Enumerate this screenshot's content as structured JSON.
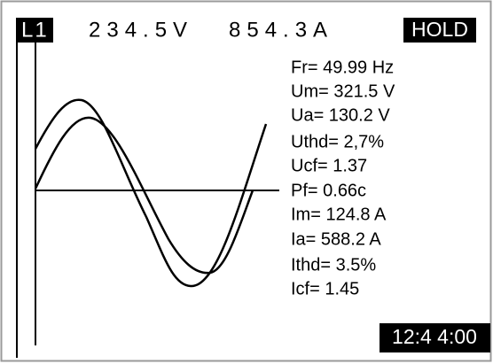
{
  "header": {
    "channel": "L1",
    "voltage": "234.5V",
    "current": "854.3A",
    "mode": "HOLD"
  },
  "readings": [
    "Fr= 49.99 Hz",
    "Um= 321.5 V",
    "Ua= 130.2 V",
    "Uthd= 2,7%",
    "Ucf= 1.37",
    "Pf= 0.66c",
    "Im= 124.8 A",
    "Ia= 588.2 A",
    "Ithd= 3.5%",
    "Icf= 1.45"
  ],
  "clock": "12:4 4:00"
}
